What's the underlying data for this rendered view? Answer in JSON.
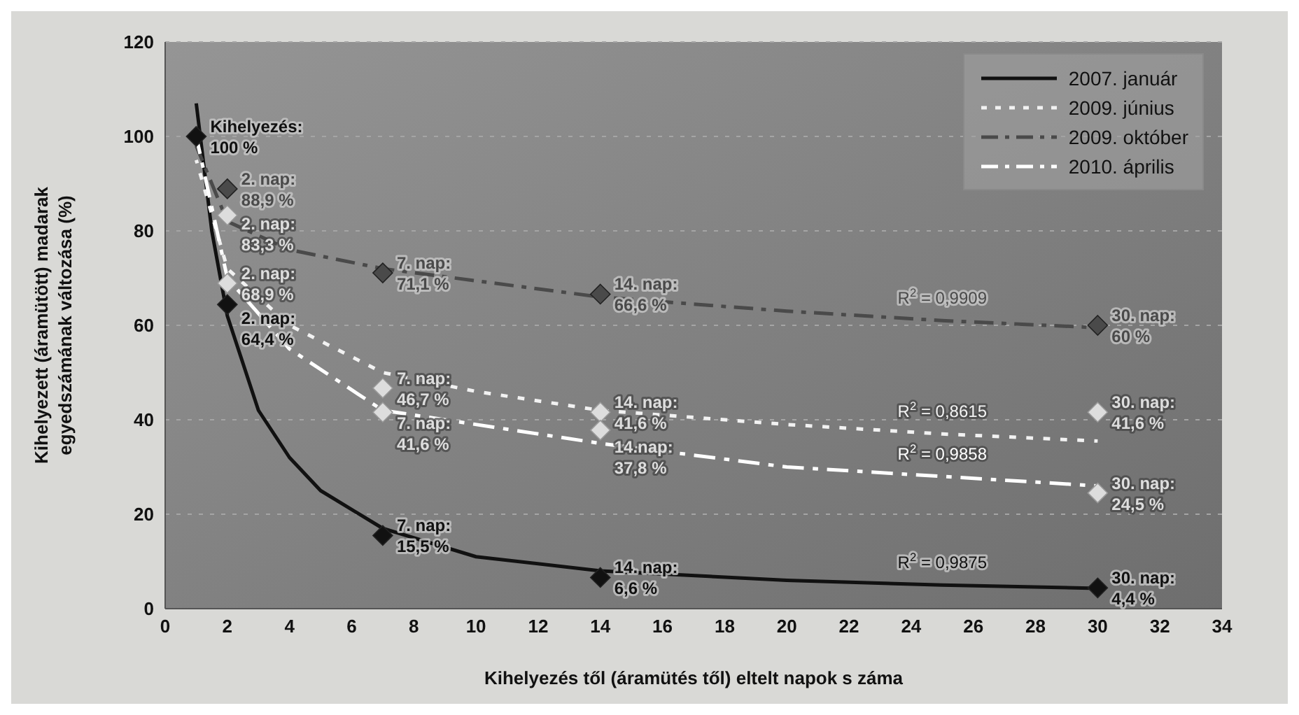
{
  "chart_data": {
    "type": "scatter",
    "xlabel": "Kihelyezés től (áramütés től) eltelt napok s záma",
    "ylabel": "Kihelyezett (áramütött) madarak egyedszámának változása (%)",
    "xlim": [
      0,
      34
    ],
    "xticks": [
      0,
      2,
      4,
      6,
      8,
      10,
      12,
      14,
      16,
      18,
      20,
      22,
      24,
      26,
      28,
      30,
      32,
      34
    ],
    "ylim": [
      0,
      120
    ],
    "yticks": [
      0,
      20,
      40,
      60,
      80,
      100,
      120
    ],
    "grid": "y",
    "legend": "top right",
    "series": [
      {
        "type": "line",
        "name": "2007. január",
        "color": "#111111",
        "line_style": "solid",
        "x": [
          1,
          1.5,
          2,
          3,
          4,
          5,
          7,
          10,
          14,
          20,
          25,
          30
        ],
        "values": [
          107,
          80,
          62,
          42,
          32,
          25,
          17,
          11,
          8,
          6,
          5,
          4.3
        ]
      },
      {
        "type": "line",
        "name": "2009. június",
        "color": "#f2f2f2",
        "line_style": "dotted",
        "x": [
          1,
          2,
          4,
          7,
          10,
          14,
          20,
          25,
          30
        ],
        "values": [
          95,
          72,
          60,
          50,
          46,
          42,
          39,
          37,
          35.5
        ]
      },
      {
        "type": "line",
        "name": "2009. október",
        "color": "#4a4a4a",
        "line_style": "dashed",
        "x": [
          1,
          2,
          4,
          7,
          14,
          20,
          25,
          30
        ],
        "values": [
          98,
          82,
          76,
          72,
          66,
          63,
          61,
          59.5
        ]
      },
      {
        "type": "line",
        "name": "2010. április",
        "color": "#ffffff",
        "line_style": "dashed",
        "x": [
          1,
          2,
          4,
          7,
          14,
          20,
          25,
          30
        ],
        "values": [
          100,
          70,
          55,
          42,
          35,
          30,
          28,
          26
        ]
      },
      {
        "color": "#4a4a4a",
        "marker": "diamond",
        "x": [
          2,
          7,
          14,
          30
        ],
        "values": [
          88.9,
          71.1,
          66.6,
          60
        ]
      },
      {
        "color": "#dddddd",
        "marker": "diamond",
        "x": [
          2,
          7,
          14,
          30
        ],
        "values": [
          83.3,
          46.7,
          41.6,
          41.6
        ]
      },
      {
        "color": "#dddddd",
        "marker": "diamond",
        "x": [
          2,
          7,
          14,
          30
        ],
        "values": [
          68.9,
          41.6,
          37.8,
          24.5
        ]
      },
      {
        "color": "#111111",
        "marker": "diamond",
        "x": [
          1,
          2,
          7,
          14,
          30
        ],
        "values": [
          100,
          64.4,
          15.5,
          6.6,
          4.4
        ]
      }
    ],
    "annotations": [
      {
        "text": "Kihelyezés:\n100 %",
        "x": 1,
        "y": 100
      },
      {
        "text": "2. nap:\n88,9 %",
        "x": 2,
        "y": 88.9
      },
      {
        "text": "2. nap:\n83,3 %",
        "x": 2,
        "y": 83.3
      },
      {
        "text": "2. nap:\n68,9 %",
        "x": 2,
        "y": 68.9
      },
      {
        "text": "2. nap:\n64,4 %",
        "x": 2,
        "y": 64.4
      },
      {
        "text": "7. nap:\n71,1 %",
        "x": 7,
        "y": 71.1
      },
      {
        "text": "7. nap:\n46,7 %",
        "x": 7,
        "y": 46.7
      },
      {
        "text": "7. nap:\n41,6 %",
        "x": 7,
        "y": 41.6
      },
      {
        "text": "7. nap:\n15,5 %",
        "x": 7,
        "y": 15.5
      },
      {
        "text": "14. nap:\n66,6 %",
        "x": 14,
        "y": 66.6
      },
      {
        "text": "14. nap:\n41,6 %",
        "x": 14,
        "y": 41.6
      },
      {
        "text": "14.nap:\n37,8 %",
        "x": 14,
        "y": 37.8
      },
      {
        "text": "14. nap:\n6,6 %",
        "x": 14,
        "y": 6.6
      },
      {
        "text": "30. nap:\n60 %",
        "x": 30,
        "y": 60
      },
      {
        "text": "30. nap:\n41,6 %",
        "x": 30,
        "y": 41.6
      },
      {
        "text": "30. nap:\n24,5 %",
        "x": 30,
        "y": 24.5
      },
      {
        "text": "30. nap:\n4,4 %",
        "x": 30,
        "y": 4.4
      },
      {
        "text": "R$^{2}$ = 0,9909",
        "x": 25,
        "y": 61
      },
      {
        "text": "R$^{2}$ = 0,8615",
        "x": 25,
        "y": 37
      },
      {
        "text": "R$^{2}$ = 0,9858",
        "x": 25,
        "y": 28
      },
      {
        "text": "R$^{2}$ = 0,9875",
        "x": 25,
        "y": 5
      }
    ]
  }
}
